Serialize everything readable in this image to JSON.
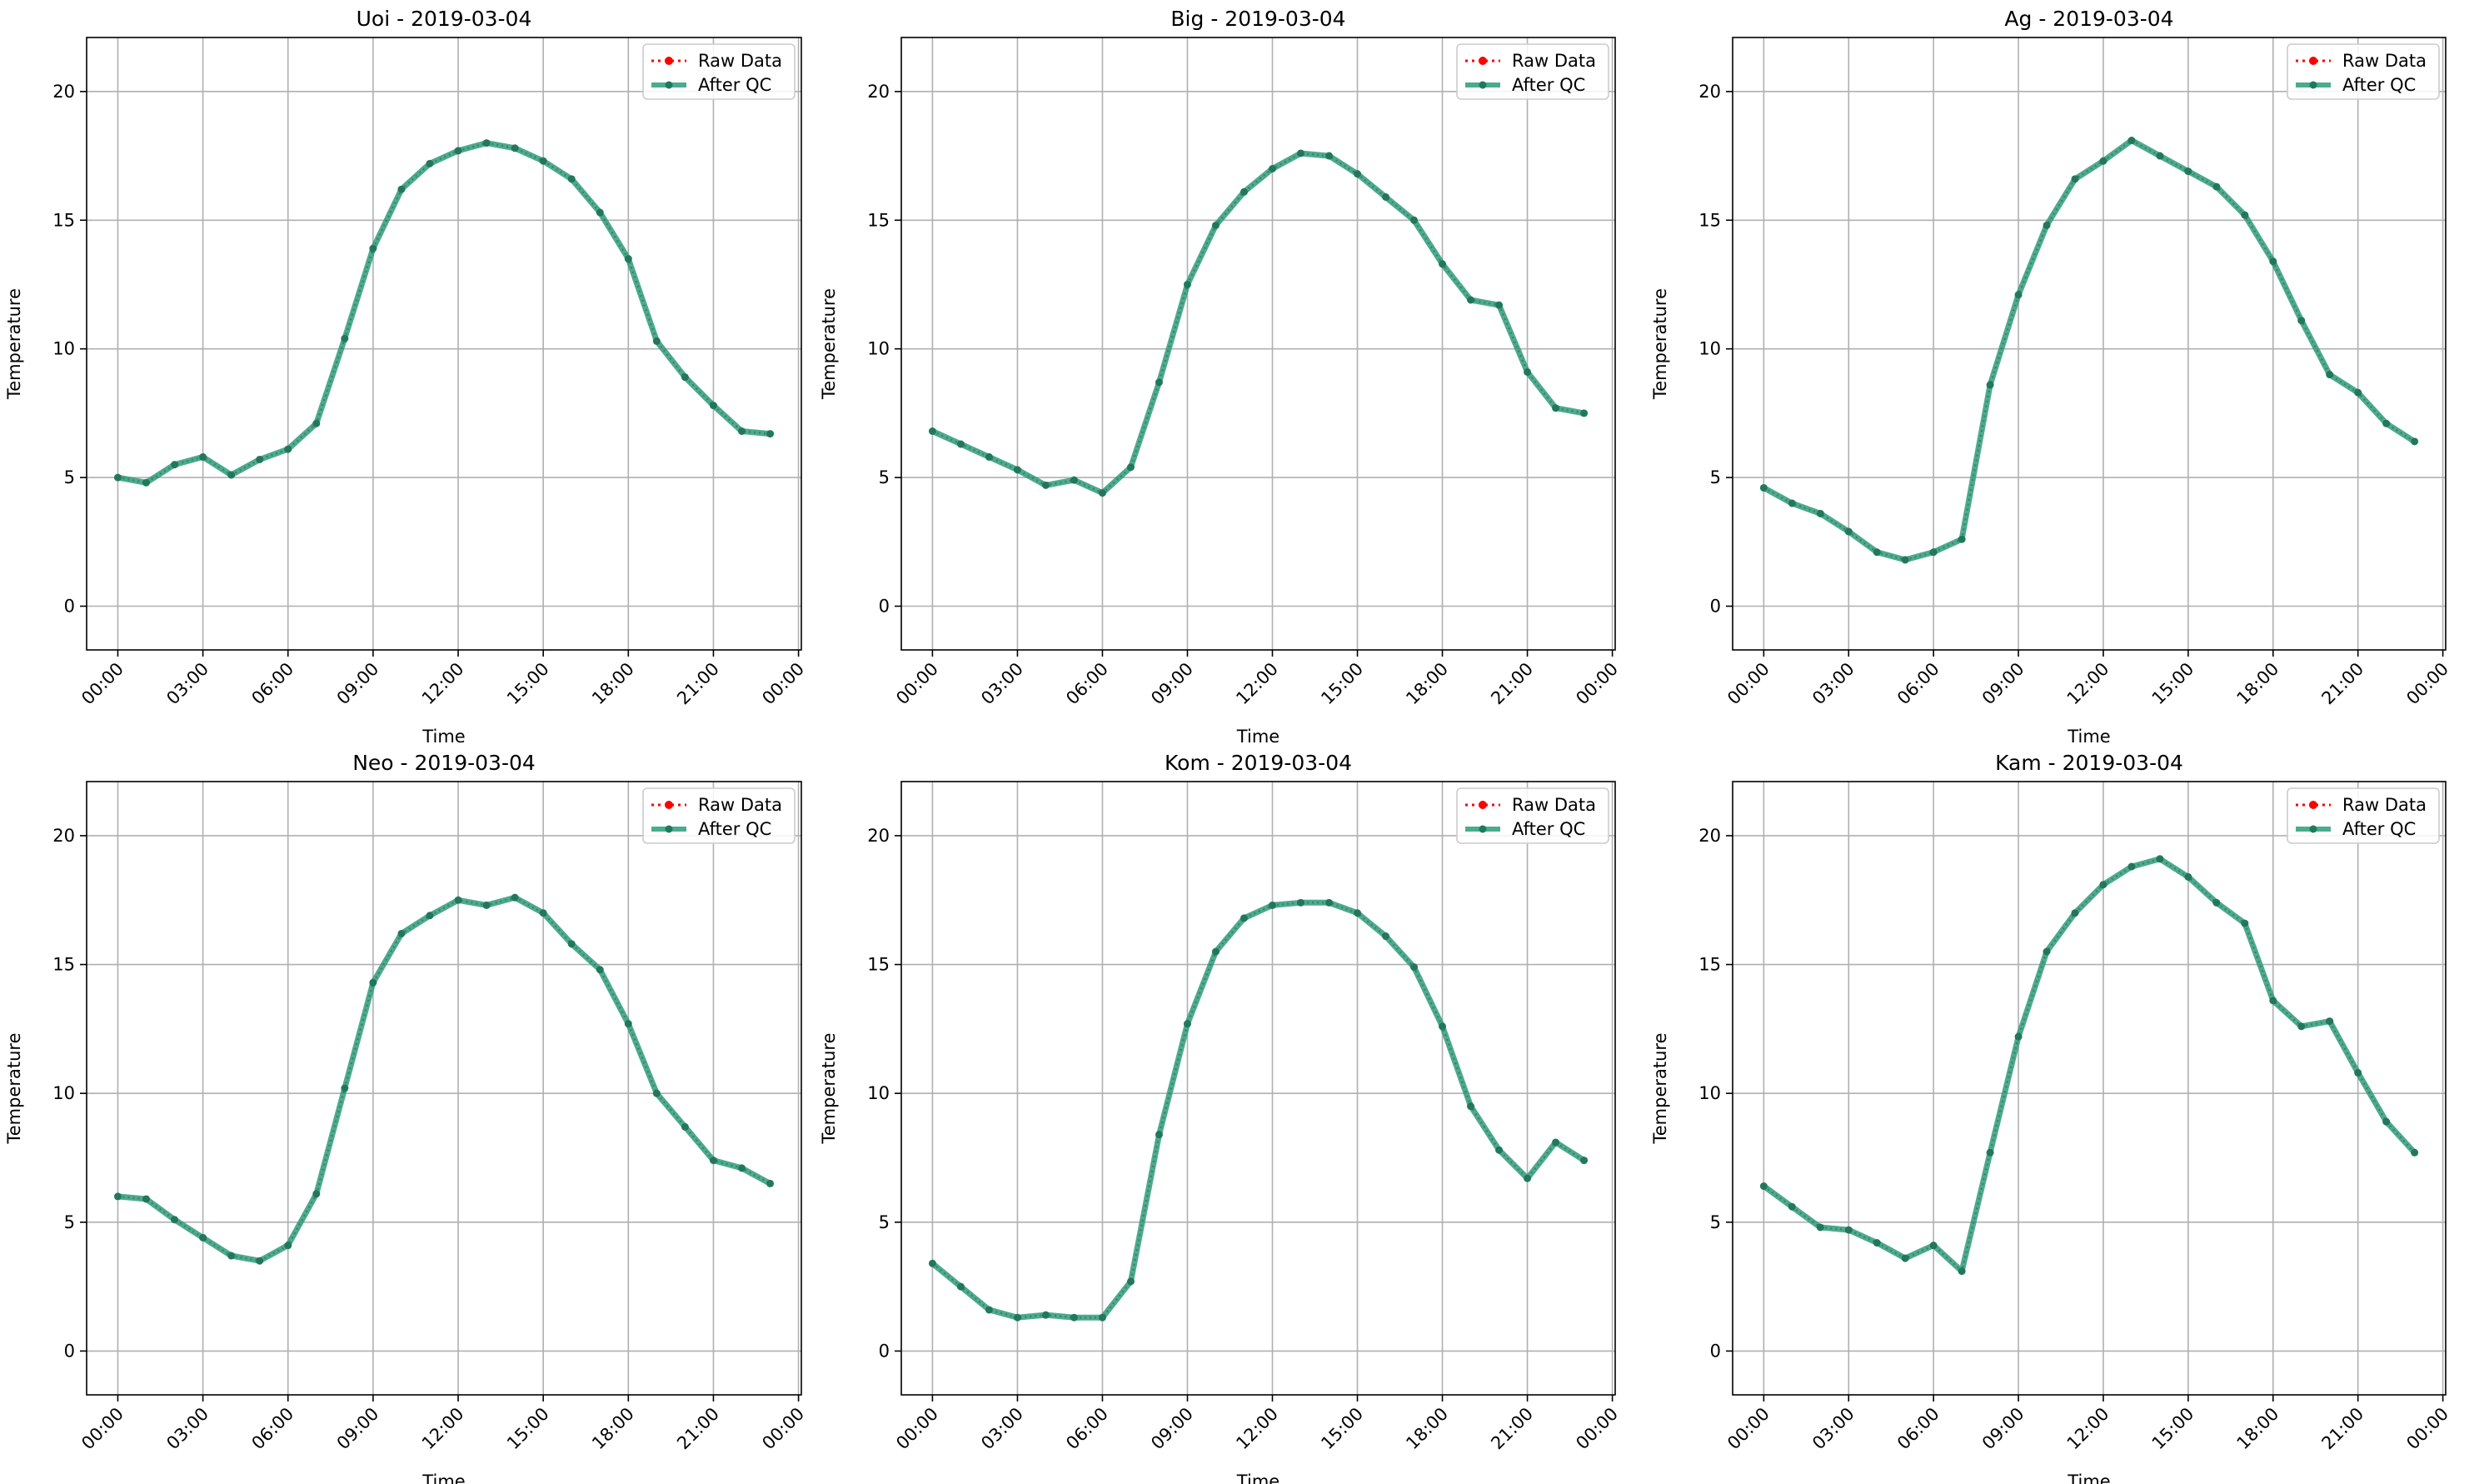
{
  "colors": {
    "raw": "#ff0000",
    "qc": "#2a9d7a",
    "qc_marker": "#1f7a5c",
    "grid": "#b0b0b0",
    "axes": "#000000"
  },
  "chart_data": [
    {
      "type": "line",
      "title": "Uoi - 2019-03-04",
      "xlabel": "Time",
      "ylabel": "Temperature",
      "x_ticks": [
        "00:00",
        "03:00",
        "06:00",
        "09:00",
        "12:00",
        "15:00",
        "18:00",
        "21:00",
        "00:00"
      ],
      "y_ticks": [
        0,
        5,
        10,
        15,
        20
      ],
      "xlim": [
        -1.1,
        24.1
      ],
      "ylim": [
        -1.7,
        22.1
      ],
      "grid": true,
      "legend": "top-right",
      "series": [
        {
          "name": "Raw Data",
          "values": [
            5.0,
            4.8,
            5.5,
            5.8,
            5.1,
            5.7,
            6.1,
            7.1,
            10.4,
            13.9,
            16.2,
            17.2,
            17.7,
            18.0,
            17.8,
            17.3,
            16.6,
            15.3,
            13.5,
            10.3,
            8.9,
            7.8,
            6.8,
            6.7
          ]
        },
        {
          "name": "After QC",
          "values": [
            5.0,
            4.8,
            5.5,
            5.8,
            5.1,
            5.7,
            6.1,
            7.1,
            10.4,
            13.9,
            16.2,
            17.2,
            17.7,
            18.0,
            17.8,
            17.3,
            16.6,
            15.3,
            13.5,
            10.3,
            8.9,
            7.8,
            6.8,
            6.7
          ]
        }
      ]
    },
    {
      "type": "line",
      "title": "Big - 2019-03-04",
      "xlabel": "Time",
      "ylabel": "Temperature",
      "x_ticks": [
        "00:00",
        "03:00",
        "06:00",
        "09:00",
        "12:00",
        "15:00",
        "18:00",
        "21:00",
        "00:00"
      ],
      "y_ticks": [
        0,
        5,
        10,
        15,
        20
      ],
      "xlim": [
        -1.1,
        24.1
      ],
      "ylim": [
        -1.7,
        22.1
      ],
      "grid": true,
      "legend": "top-right",
      "series": [
        {
          "name": "Raw Data",
          "values": [
            6.8,
            6.3,
            5.8,
            5.3,
            4.7,
            4.9,
            4.4,
            5.4,
            8.7,
            12.5,
            14.8,
            16.1,
            17.0,
            17.6,
            17.5,
            16.8,
            15.9,
            15.0,
            13.3,
            11.9,
            11.7,
            9.1,
            7.7,
            7.5
          ]
        },
        {
          "name": "After QC",
          "values": [
            6.8,
            6.3,
            5.8,
            5.3,
            4.7,
            4.9,
            4.4,
            5.4,
            8.7,
            12.5,
            14.8,
            16.1,
            17.0,
            17.6,
            17.5,
            16.8,
            15.9,
            15.0,
            13.3,
            11.9,
            11.7,
            9.1,
            7.7,
            7.5
          ]
        }
      ]
    },
    {
      "type": "line",
      "title": "Ag - 2019-03-04",
      "xlabel": "Time",
      "ylabel": "Temperature",
      "x_ticks": [
        "00:00",
        "03:00",
        "06:00",
        "09:00",
        "12:00",
        "15:00",
        "18:00",
        "21:00",
        "00:00"
      ],
      "y_ticks": [
        0,
        5,
        10,
        15,
        20
      ],
      "xlim": [
        -1.1,
        24.1
      ],
      "ylim": [
        -1.7,
        22.1
      ],
      "grid": true,
      "legend": "top-right",
      "series": [
        {
          "name": "Raw Data",
          "values": [
            4.6,
            4.0,
            3.6,
            2.9,
            2.1,
            1.8,
            2.1,
            2.6,
            8.6,
            12.1,
            14.8,
            16.6,
            17.3,
            18.1,
            17.5,
            16.9,
            16.3,
            15.2,
            13.4,
            11.1,
            9.0,
            8.3,
            7.1,
            6.4
          ]
        },
        {
          "name": "After QC",
          "values": [
            4.6,
            4.0,
            3.6,
            2.9,
            2.1,
            1.8,
            2.1,
            2.6,
            8.6,
            12.1,
            14.8,
            16.6,
            17.3,
            18.1,
            17.5,
            16.9,
            16.3,
            15.2,
            13.4,
            11.1,
            9.0,
            8.3,
            7.1,
            6.4
          ]
        }
      ]
    },
    {
      "type": "line",
      "title": "Neo - 2019-03-04",
      "xlabel": "Time",
      "ylabel": "Temperature",
      "x_ticks": [
        "00:00",
        "03:00",
        "06:00",
        "09:00",
        "12:00",
        "15:00",
        "18:00",
        "21:00",
        "00:00"
      ],
      "y_ticks": [
        0,
        5,
        10,
        15,
        20
      ],
      "xlim": [
        -1.1,
        24.1
      ],
      "ylim": [
        -1.7,
        22.1
      ],
      "grid": true,
      "legend": "top-right",
      "series": [
        {
          "name": "Raw Data",
          "values": [
            6.0,
            5.9,
            5.1,
            4.4,
            3.7,
            3.5,
            4.1,
            6.1,
            10.2,
            14.3,
            16.2,
            16.9,
            17.5,
            17.3,
            17.6,
            17.0,
            15.8,
            14.8,
            12.7,
            10.0,
            8.7,
            7.4,
            7.1,
            6.5
          ]
        },
        {
          "name": "After QC",
          "values": [
            6.0,
            5.9,
            5.1,
            4.4,
            3.7,
            3.5,
            4.1,
            6.1,
            10.2,
            14.3,
            16.2,
            16.9,
            17.5,
            17.3,
            17.6,
            17.0,
            15.8,
            14.8,
            12.7,
            10.0,
            8.7,
            7.4,
            7.1,
            6.5
          ]
        }
      ]
    },
    {
      "type": "line",
      "title": "Kom - 2019-03-04",
      "xlabel": "Time",
      "ylabel": "Temperature",
      "x_ticks": [
        "00:00",
        "03:00",
        "06:00",
        "09:00",
        "12:00",
        "15:00",
        "18:00",
        "21:00",
        "00:00"
      ],
      "y_ticks": [
        0,
        5,
        10,
        15,
        20
      ],
      "xlim": [
        -1.1,
        24.1
      ],
      "ylim": [
        -1.7,
        22.1
      ],
      "grid": true,
      "legend": "top-right",
      "series": [
        {
          "name": "Raw Data",
          "values": [
            3.4,
            2.5,
            1.6,
            1.3,
            1.4,
            1.3,
            1.3,
            2.7,
            8.4,
            12.7,
            15.5,
            16.8,
            17.3,
            17.4,
            17.4,
            17.0,
            16.1,
            14.9,
            12.6,
            9.5,
            7.8,
            6.7,
            8.1,
            7.4
          ]
        },
        {
          "name": "After QC",
          "values": [
            3.4,
            2.5,
            1.6,
            1.3,
            1.4,
            1.3,
            1.3,
            2.7,
            8.4,
            12.7,
            15.5,
            16.8,
            17.3,
            17.4,
            17.4,
            17.0,
            16.1,
            14.9,
            12.6,
            9.5,
            7.8,
            6.7,
            8.1,
            7.4
          ]
        }
      ]
    },
    {
      "type": "line",
      "title": "Kam - 2019-03-04",
      "xlabel": "Time",
      "ylabel": "Temperature",
      "x_ticks": [
        "00:00",
        "03:00",
        "06:00",
        "09:00",
        "12:00",
        "15:00",
        "18:00",
        "21:00",
        "00:00"
      ],
      "y_ticks": [
        0,
        5,
        10,
        15,
        20
      ],
      "xlim": [
        -1.1,
        24.1
      ],
      "ylim": [
        -1.7,
        22.1
      ],
      "grid": true,
      "legend": "top-right",
      "series": [
        {
          "name": "Raw Data",
          "values": [
            6.4,
            5.6,
            4.8,
            4.7,
            4.2,
            3.6,
            4.1,
            3.1,
            7.7,
            12.2,
            15.5,
            17.0,
            18.1,
            18.8,
            19.1,
            18.4,
            17.4,
            16.6,
            13.6,
            12.6,
            12.8,
            10.8,
            8.9,
            7.7
          ]
        },
        {
          "name": "After QC",
          "values": [
            6.4,
            5.6,
            4.8,
            4.7,
            4.2,
            3.6,
            4.1,
            3.1,
            7.7,
            12.2,
            15.5,
            17.0,
            18.1,
            18.8,
            19.1,
            18.4,
            17.4,
            16.6,
            13.6,
            12.6,
            12.8,
            10.8,
            8.9,
            7.7
          ]
        }
      ]
    }
  ]
}
